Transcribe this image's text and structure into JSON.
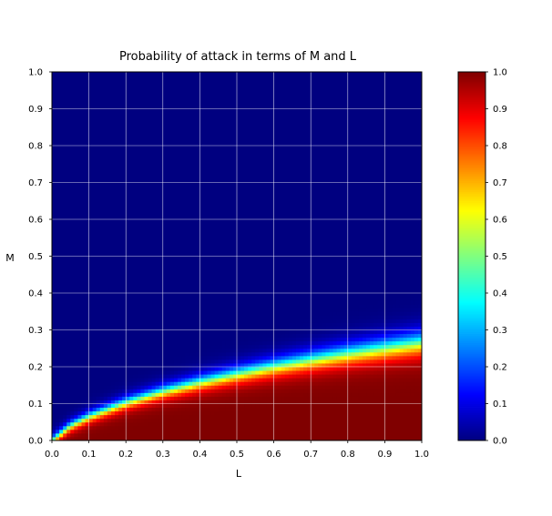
{
  "chart_data": {
    "type": "heatmap",
    "title": "Probability of attack in terms of M and L",
    "xlabel": "L",
    "ylabel": "M",
    "xlim": [
      0.0,
      1.0
    ],
    "ylim": [
      0.0,
      1.0
    ],
    "x_ticks": [
      "0.0",
      "0.1",
      "0.2",
      "0.3",
      "0.4",
      "0.5",
      "0.6",
      "0.7",
      "0.8",
      "0.9",
      "1.0"
    ],
    "y_ticks": [
      "0.0",
      "0.1",
      "0.2",
      "0.3",
      "0.4",
      "0.5",
      "0.6",
      "0.7",
      "0.8",
      "0.9",
      "1.0"
    ],
    "colorbar": {
      "colormap": "jet",
      "range": [
        0.0,
        1.0
      ],
      "ticks": [
        "0.0",
        "0.1",
        "0.2",
        "0.3",
        "0.4",
        "0.5",
        "0.6",
        "0.7",
        "0.8",
        "0.9",
        "1.0"
      ]
    },
    "grid": true,
    "grid_color": "#ffffff",
    "boundary_curve": {
      "description_l_values": [
        0.0,
        0.05,
        0.1,
        0.2,
        0.3,
        0.4,
        0.5,
        0.6,
        0.7,
        0.8,
        0.9,
        1.0
      ],
      "m_at_probability_0_5": [
        0.0,
        0.04,
        0.065,
        0.103,
        0.133,
        0.158,
        0.18,
        0.2,
        0.218,
        0.235,
        0.25,
        0.265
      ]
    },
    "resolution": 100
  }
}
